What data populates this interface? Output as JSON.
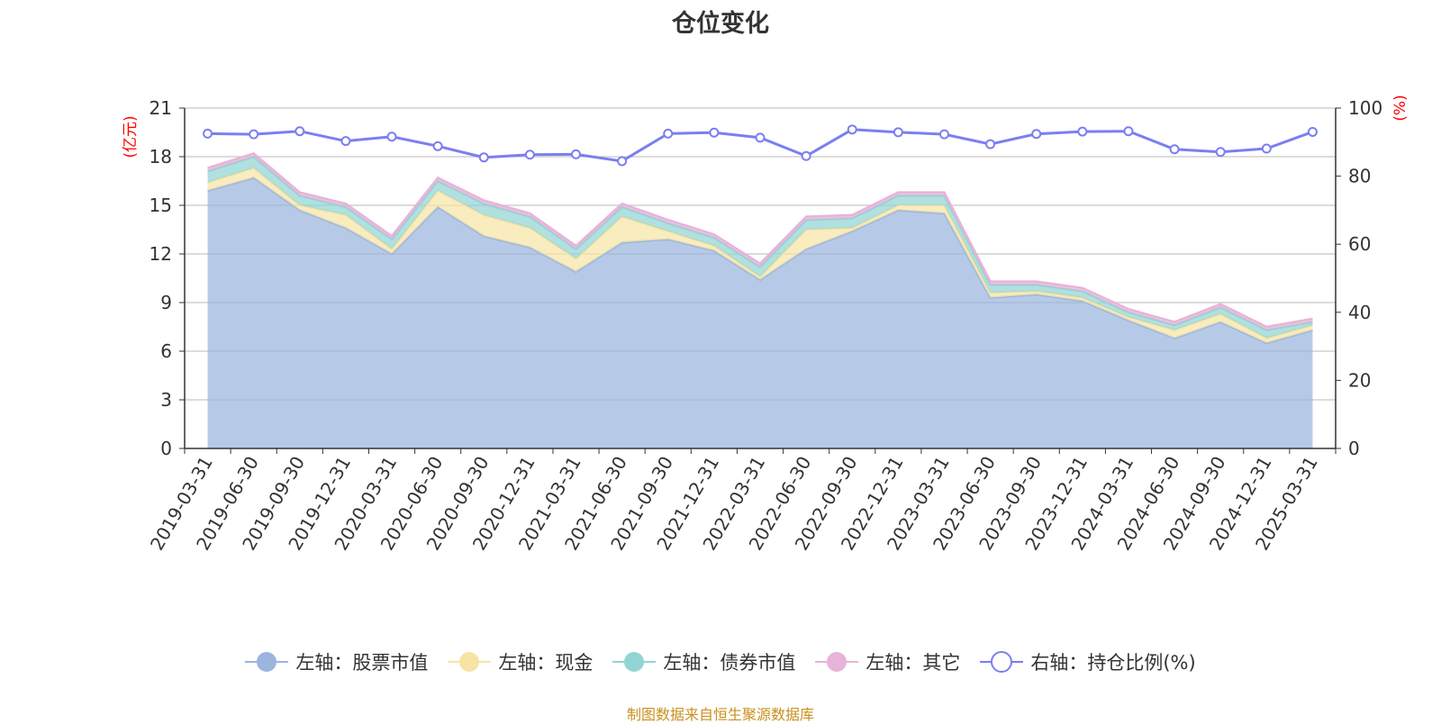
{
  "footer": "制图数据来自恒生聚源数据库",
  "chart_data": {
    "type": "area",
    "title": "仓位变化",
    "left_axis_unit": "(亿元)",
    "right_axis_unit": "(%)",
    "ylim_left": [
      0,
      21
    ],
    "yticks_left": [
      0,
      3,
      6,
      9,
      12,
      15,
      18,
      21
    ],
    "ylim_right": [
      0,
      100
    ],
    "yticks_right": [
      0,
      20,
      40,
      60,
      80,
      100
    ],
    "grid": true,
    "legend_position": "bottom",
    "categories": [
      "2019-03-31",
      "2019-06-30",
      "2019-09-30",
      "2019-12-31",
      "2020-03-31",
      "2020-06-30",
      "2020-09-30",
      "2020-12-31",
      "2021-03-31",
      "2021-06-30",
      "2021-09-30",
      "2021-12-31",
      "2022-03-31",
      "2022-06-30",
      "2022-09-30",
      "2022-12-31",
      "2023-03-31",
      "2023-06-30",
      "2023-09-30",
      "2023-12-31",
      "2024-03-31",
      "2024-06-30",
      "2024-09-30",
      "2024-12-31",
      "2025-03-31"
    ],
    "series": [
      {
        "name": "左轴：股票市值",
        "axis": "left",
        "kind": "stacked-area",
        "color": "#9ab5de",
        "values": [
          15.9,
          16.7,
          14.7,
          13.6,
          12.0,
          14.9,
          13.1,
          12.4,
          10.9,
          12.7,
          12.9,
          12.2,
          10.4,
          12.3,
          13.4,
          14.7,
          14.5,
          9.3,
          9.5,
          9.1,
          7.9,
          6.8,
          7.8,
          6.5,
          7.3
        ]
      },
      {
        "name": "左轴：现金",
        "axis": "left",
        "kind": "stacked-area",
        "color": "#f7e4a5",
        "values": [
          0.5,
          0.6,
          0.3,
          0.8,
          0.3,
          1.0,
          1.3,
          1.2,
          0.8,
          1.6,
          0.5,
          0.3,
          0.2,
          1.2,
          0.2,
          0.3,
          0.5,
          0.3,
          0.2,
          0.2,
          0.2,
          0.5,
          0.5,
          0.3,
          0.3
        ]
      },
      {
        "name": "左轴：债券市值",
        "axis": "left",
        "kind": "stacked-area",
        "color": "#92d4d4",
        "values": [
          0.7,
          0.7,
          0.6,
          0.5,
          0.6,
          0.6,
          0.7,
          0.7,
          0.6,
          0.6,
          0.5,
          0.5,
          0.6,
          0.6,
          0.6,
          0.6,
          0.6,
          0.5,
          0.4,
          0.4,
          0.3,
          0.3,
          0.4,
          0.5,
          0.2
        ]
      },
      {
        "name": "左轴：其它",
        "axis": "left",
        "kind": "stacked-area",
        "color": "#e8b3d8",
        "values": [
          0.2,
          0.2,
          0.2,
          0.2,
          0.2,
          0.2,
          0.2,
          0.2,
          0.2,
          0.2,
          0.2,
          0.2,
          0.2,
          0.2,
          0.2,
          0.2,
          0.2,
          0.2,
          0.2,
          0.2,
          0.2,
          0.2,
          0.2,
          0.2,
          0.2
        ]
      },
      {
        "name": "右轴：持仓比例(%)",
        "axis": "right",
        "kind": "line",
        "color": "#7b7ff0",
        "values": [
          92.5,
          92.3,
          93.2,
          90.3,
          91.6,
          88.8,
          85.5,
          86.3,
          86.4,
          84.4,
          92.5,
          92.8,
          91.3,
          85.9,
          93.7,
          92.9,
          92.3,
          89.4,
          92.4,
          93.1,
          93.2,
          87.9,
          87.1,
          88.1,
          93.0
        ]
      }
    ]
  }
}
